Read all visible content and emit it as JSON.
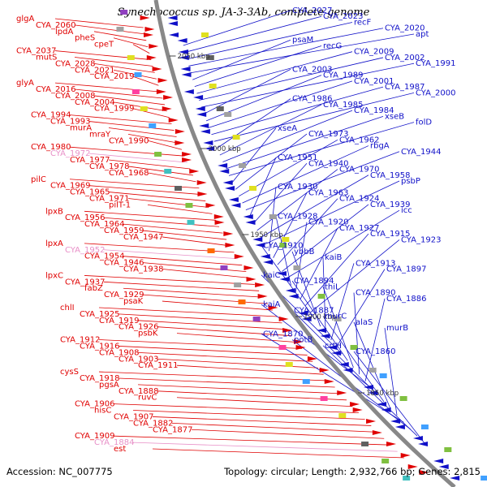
{
  "title": "Synechococcus sp. JA-3-3Ab, complete genome",
  "footer": {
    "accession": "Accession: NC_007775",
    "summary": "Topology: circular; Length: 2,932,766 bp; Genes: 2,815"
  },
  "colors": {
    "forward": "#e00000",
    "reverse": "#1010c8",
    "pseudo": "#e890c8",
    "backbone": "#888888",
    "tick": "#208a20",
    "kbp_text": "#333333"
  },
  "kbp_labels": [
    "2050 kbp",
    "2000 kbp",
    "1950 kbp",
    "1900 kbp",
    "1850 kbp"
  ],
  "left_labels": [
    "glgA",
    "CYA_2060",
    "lpdA",
    "pheS",
    "cpeT",
    "CYA_2037",
    "mutS",
    "CYA_2028",
    "CYA_2021",
    "CYA_2019",
    "glyA",
    "CYA_2016",
    "CYA_2008",
    "CYA_2004",
    "CYA_1999",
    "CYA_1994",
    "CYA_1993",
    "murA",
    "mraY",
    "CYA_1990",
    "CYA_1980",
    "CYA_1972",
    "CYA_1977",
    "CYA_1978",
    "CYA_1968",
    "pilC",
    "CYA_1969",
    "CYA_1965",
    "CYA_1971",
    "pilT-1",
    "lpxB",
    "CYA_1956",
    "CYA_1964",
    "CYA_1959",
    "CYA_1947",
    "lpxA",
    "CYA_1952",
    "CYA_1954",
    "CYA_1946",
    "CYA_1938",
    "lpxC",
    "CYA_1937",
    "fabZ",
    "CYA_1929",
    "psaK",
    "chlI",
    "CYA_1925",
    "CYA_1919",
    "CYA_1926",
    "psbK",
    "CYA_1912",
    "CYA_1916",
    "CYA_1908",
    "CYA_1903",
    "CYA_1911",
    "cysS",
    "CYA_1918",
    "pgsA",
    "CYA_1888",
    "ruvC",
    "CYA_1906",
    "hisC",
    "CYA_1907",
    "CYA_1882",
    "CYA_1877",
    "CYA_1909",
    "CYA_1884",
    "est"
  ],
  "right_labels": [
    "CYA_2027",
    "CYA_2023",
    "recF",
    "CYA_2020",
    "apt",
    "psaM",
    "recG",
    "CYA_2009",
    "CYA_2002",
    "CYA_1991",
    "CYA_2003",
    "CYA_1989",
    "CYA_2001",
    "CYA_1987",
    "CYA_2000",
    "CYA_1986",
    "CYA_1985",
    "CYA_1984",
    "xseB",
    "folD",
    "xseA",
    "CYA_1973",
    "CYA_1962",
    "rbgA",
    "CYA_1944",
    "CYA_1951",
    "CYA_1940",
    "CYA_1970",
    "CYA_1958",
    "psbP",
    "CYA_1930",
    "CYA_1963",
    "CYA_1924",
    "CYA_1939",
    "icc",
    "CYA_1928",
    "CYA_1920",
    "CYA_1927",
    "CYA_1915",
    "CYA_1923",
    "CYA_1910",
    "ybbB",
    "kaiB",
    "CYA_1913",
    "CYA_1897",
    "kaiC",
    "CYA_1894",
    "thiL",
    "CYA_1890",
    "CYA_1886",
    "kaiA",
    "CYA_1887",
    "murC",
    "alaS",
    "murB",
    "CYA_1870",
    "potB",
    "crtH",
    "CYA_1860"
  ]
}
